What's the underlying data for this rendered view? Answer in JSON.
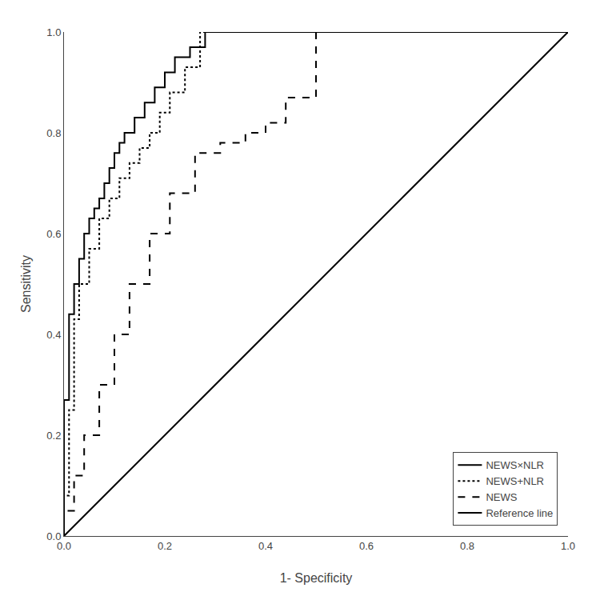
{
  "chart_data": {
    "type": "line",
    "xlabel": "1- Specificity",
    "ylabel": "Sensitivity",
    "xlim": [
      0.0,
      1.0
    ],
    "ylim": [
      0.0,
      1.0
    ],
    "xticks": [
      {
        "value": 0.0,
        "label": "0.0"
      },
      0.2,
      0.4,
      0.6,
      0.8,
      {
        "value": 1.0,
        "label": "1.0"
      }
    ],
    "yticks": [
      {
        "value": 0.0,
        "label": "0.0"
      },
      0.2,
      0.4,
      0.6,
      0.8,
      {
        "value": 1.0,
        "label": "1.0"
      }
    ],
    "grid": false,
    "legend": "lower right",
    "series": [
      {
        "name": "NEWS×NLR",
        "color": "#000000",
        "line_style": "solid",
        "x": [
          0.0,
          0.0,
          0.01,
          0.01,
          0.02,
          0.02,
          0.03,
          0.03,
          0.04,
          0.04,
          0.05,
          0.05,
          0.06,
          0.06,
          0.07,
          0.07,
          0.08,
          0.08,
          0.09,
          0.09,
          0.1,
          0.1,
          0.11,
          0.11,
          0.12,
          0.12,
          0.14,
          0.14,
          0.16,
          0.16,
          0.18,
          0.18,
          0.2,
          0.2,
          0.22,
          0.22,
          0.25,
          0.25,
          0.28,
          0.28,
          1.0
        ],
        "values": [
          0.0,
          0.27,
          0.27,
          0.44,
          0.44,
          0.5,
          0.5,
          0.55,
          0.55,
          0.6,
          0.6,
          0.63,
          0.63,
          0.65,
          0.65,
          0.67,
          0.67,
          0.7,
          0.7,
          0.73,
          0.73,
          0.76,
          0.76,
          0.78,
          0.78,
          0.8,
          0.8,
          0.83,
          0.83,
          0.86,
          0.86,
          0.89,
          0.89,
          0.92,
          0.92,
          0.95,
          0.95,
          0.97,
          0.97,
          1.0,
          1.0
        ]
      },
      {
        "name": "NEWS+NLR",
        "color": "#000000",
        "line_style": "dotted",
        "x": [
          0.0,
          0.0,
          0.01,
          0.01,
          0.02,
          0.02,
          0.03,
          0.03,
          0.05,
          0.05,
          0.07,
          0.07,
          0.09,
          0.09,
          0.11,
          0.11,
          0.13,
          0.13,
          0.15,
          0.15,
          0.17,
          0.17,
          0.19,
          0.19,
          0.21,
          0.21,
          0.24,
          0.24,
          0.27,
          0.27,
          0.6,
          0.6,
          0.75,
          0.75,
          1.0
        ],
        "values": [
          0.0,
          0.08,
          0.08,
          0.25,
          0.25,
          0.43,
          0.43,
          0.5,
          0.5,
          0.57,
          0.57,
          0.63,
          0.63,
          0.67,
          0.67,
          0.71,
          0.71,
          0.74,
          0.74,
          0.77,
          0.77,
          0.8,
          0.8,
          0.84,
          0.84,
          0.88,
          0.88,
          0.93,
          0.93,
          1.0,
          1.0,
          1.0,
          1.0,
          1.0,
          1.0
        ]
      },
      {
        "name": "NEWS",
        "color": "#000000",
        "line_style": "dashed",
        "x": [
          0.0,
          0.0,
          0.02,
          0.02,
          0.04,
          0.04,
          0.07,
          0.07,
          0.1,
          0.1,
          0.13,
          0.13,
          0.17,
          0.17,
          0.21,
          0.21,
          0.26,
          0.26,
          0.31,
          0.31,
          0.36,
          0.36,
          0.4,
          0.4,
          0.44,
          0.44,
          0.5,
          0.5,
          1.0
        ],
        "values": [
          0.0,
          0.05,
          0.05,
          0.12,
          0.12,
          0.2,
          0.2,
          0.3,
          0.3,
          0.4,
          0.4,
          0.5,
          0.5,
          0.6,
          0.6,
          0.68,
          0.68,
          0.76,
          0.76,
          0.78,
          0.78,
          0.8,
          0.8,
          0.82,
          0.82,
          0.87,
          0.87,
          1.0,
          1.0
        ]
      },
      {
        "name": "Reference line",
        "color": "#000000",
        "line_style": "solid",
        "x": [
          0,
          1
        ],
        "values": [
          0,
          1
        ]
      }
    ]
  }
}
